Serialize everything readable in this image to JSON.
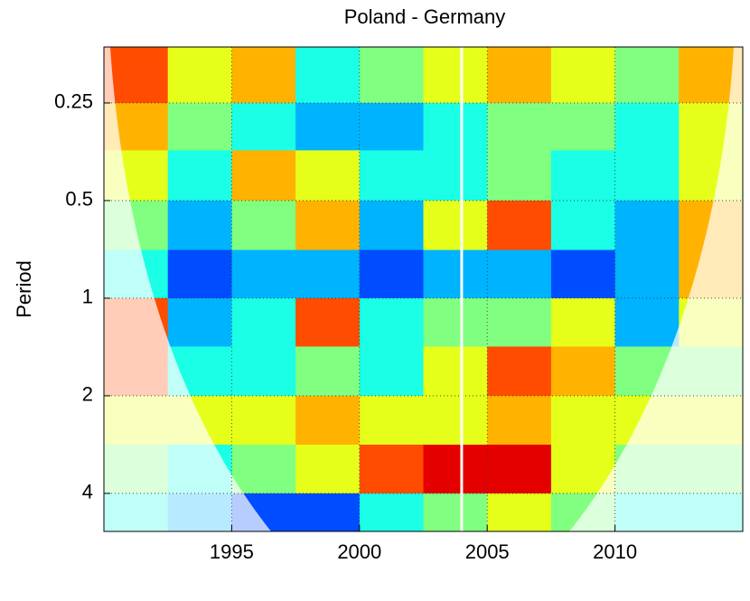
{
  "chart_data": {
    "type": "heatmap",
    "title": "Poland - Germany",
    "y_label": "Period",
    "x_bins": [
      1990,
      1992.5,
      1995,
      1997.5,
      2000,
      2002.5,
      2005,
      2007.5,
      2010,
      2012.5,
      2015
    ],
    "y_bins": [
      0.168,
      0.25,
      0.35,
      0.5,
      0.71,
      1,
      1.41,
      2,
      2.83,
      4,
      5.24
    ],
    "z": [
      [
        0.8,
        0.6,
        0.7,
        0.4,
        0.5,
        0.6,
        0.7,
        0.6,
        0.5,
        0.7
      ],
      [
        0.7,
        0.5,
        0.4,
        0.3,
        0.3,
        0.4,
        0.5,
        0.5,
        0.4,
        0.6
      ],
      [
        0.6,
        0.4,
        0.7,
        0.6,
        0.4,
        0.4,
        0.5,
        0.4,
        0.4,
        0.6
      ],
      [
        0.5,
        0.3,
        0.5,
        0.7,
        0.3,
        0.6,
        0.8,
        0.4,
        0.3,
        0.7
      ],
      [
        0.4,
        0.2,
        0.3,
        0.3,
        0.2,
        0.3,
        0.3,
        0.2,
        0.3,
        0.7
      ],
      [
        0.8,
        0.3,
        0.4,
        0.8,
        0.4,
        0.5,
        0.5,
        0.6,
        0.3,
        0.6
      ],
      [
        0.8,
        0.4,
        0.4,
        0.5,
        0.4,
        0.6,
        0.8,
        0.7,
        0.5,
        0.5
      ],
      [
        0.6,
        0.6,
        0.6,
        0.7,
        0.6,
        0.6,
        0.7,
        0.6,
        0.6,
        0.6
      ],
      [
        0.5,
        0.4,
        0.5,
        0.6,
        0.8,
        0.9,
        0.9,
        0.6,
        0.5,
        0.5
      ],
      [
        0.4,
        0.3,
        0.2,
        0.2,
        0.4,
        0.5,
        0.6,
        0.5,
        0.4,
        0.4
      ]
    ],
    "zlim": [
      0,
      1
    ],
    "colormap": "jet",
    "xlim": [
      1990,
      2015
    ],
    "xticks": [
      1995,
      2000,
      2005,
      2010
    ],
    "ylim": [
      0.168,
      5.24
    ],
    "yticks": [
      0.25,
      0.5,
      1,
      2,
      4
    ],
    "y_log_base": 2,
    "y_reversed": true,
    "grid": true,
    "vline": {
      "x": 2004,
      "color": "#ffffff"
    }
  }
}
